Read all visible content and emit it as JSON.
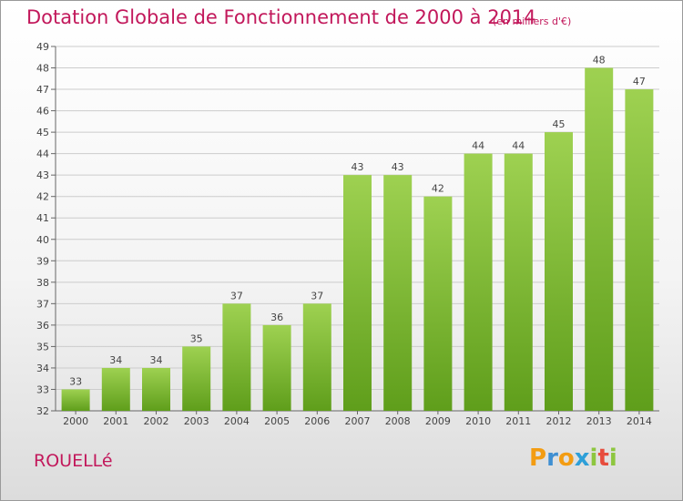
{
  "title": "Dotation Globale de Fonctionnement de 2000 à 2014",
  "subtitle": "(en milliers d'€)",
  "commune": "ROUELLé",
  "logo": {
    "letters": [
      "P",
      "r",
      "o",
      "x",
      "i",
      "t",
      "i"
    ],
    "colors": [
      "#f39c12",
      "#3f8fd2",
      "#f39c12",
      "#2e9fd8",
      "#8dc63f",
      "#e74c3c",
      "#8dc63f"
    ]
  },
  "colors": {
    "bar_top": "#9ed151",
    "bar_bottom": "#5f9e1b",
    "text": "#c2185b",
    "grid": "#cccccc"
  },
  "chart_data": {
    "type": "bar",
    "title": "Dotation Globale de Fonctionnement de 2000 à 2014",
    "subtitle": "(en milliers d'€)",
    "categories": [
      "2000",
      "2001",
      "2002",
      "2003",
      "2004",
      "2005",
      "2006",
      "2007",
      "2008",
      "2009",
      "2010",
      "2011",
      "2012",
      "2013",
      "2014"
    ],
    "values": [
      33,
      34,
      34,
      35,
      37,
      36,
      37,
      43,
      43,
      42,
      44,
      44,
      45,
      48,
      47
    ],
    "ylim": [
      32,
      49
    ],
    "yticks": [
      32,
      33,
      34,
      35,
      36,
      37,
      38,
      39,
      40,
      41,
      42,
      43,
      44,
      45,
      46,
      47,
      48,
      49
    ],
    "grid": true,
    "xlabel": "",
    "ylabel": ""
  }
}
